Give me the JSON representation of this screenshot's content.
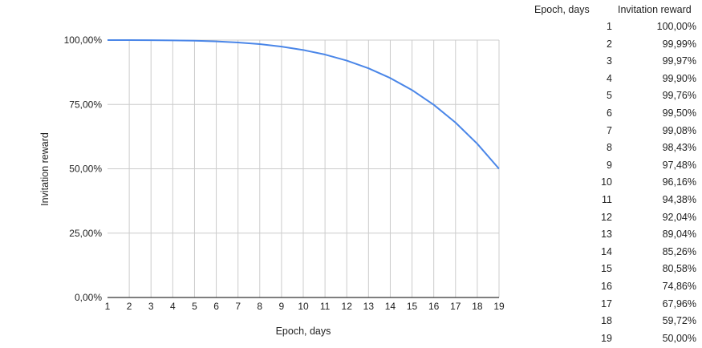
{
  "chart_data": {
    "type": "line",
    "title": "",
    "xlabel": "Epoch, days",
    "ylabel": "Invitation reward",
    "x": [
      1,
      2,
      3,
      4,
      5,
      6,
      7,
      8,
      9,
      10,
      11,
      12,
      13,
      14,
      15,
      16,
      17,
      18,
      19
    ],
    "series": [
      {
        "values": [
          100.0,
          99.99,
          99.97,
          99.9,
          99.76,
          99.5,
          99.08,
          98.43,
          97.48,
          96.16,
          94.38,
          92.04,
          89.04,
          85.26,
          80.58,
          74.86,
          67.96,
          59.72,
          50.0
        ]
      }
    ],
    "xlim": [
      1,
      19
    ],
    "ylim": [
      0,
      100
    ],
    "yticks": [
      "0,00%",
      "25,00%",
      "50,00%",
      "75,00%",
      "100,00%"
    ],
    "ytick_values": [
      0,
      25,
      50,
      75,
      100
    ],
    "grid": true,
    "line_color": "#4a86e8"
  },
  "table": {
    "header_epoch": "Epoch, days",
    "header_reward": "Invitation reward",
    "rows": [
      {
        "epoch": "1",
        "reward": "100,00%"
      },
      {
        "epoch": "2",
        "reward": "99,99%"
      },
      {
        "epoch": "3",
        "reward": "99,97%"
      },
      {
        "epoch": "4",
        "reward": "99,90%"
      },
      {
        "epoch": "5",
        "reward": "99,76%"
      },
      {
        "epoch": "6",
        "reward": "99,50%"
      },
      {
        "epoch": "7",
        "reward": "99,08%"
      },
      {
        "epoch": "8",
        "reward": "98,43%"
      },
      {
        "epoch": "9",
        "reward": "97,48%"
      },
      {
        "epoch": "10",
        "reward": "96,16%"
      },
      {
        "epoch": "11",
        "reward": "94,38%"
      },
      {
        "epoch": "12",
        "reward": "92,04%"
      },
      {
        "epoch": "13",
        "reward": "89,04%"
      },
      {
        "epoch": "14",
        "reward": "85,26%"
      },
      {
        "epoch": "15",
        "reward": "80,58%"
      },
      {
        "epoch": "16",
        "reward": "74,86%"
      },
      {
        "epoch": "17",
        "reward": "67,96%"
      },
      {
        "epoch": "18",
        "reward": "59,72%"
      },
      {
        "epoch": "19",
        "reward": "50,00%"
      }
    ]
  }
}
